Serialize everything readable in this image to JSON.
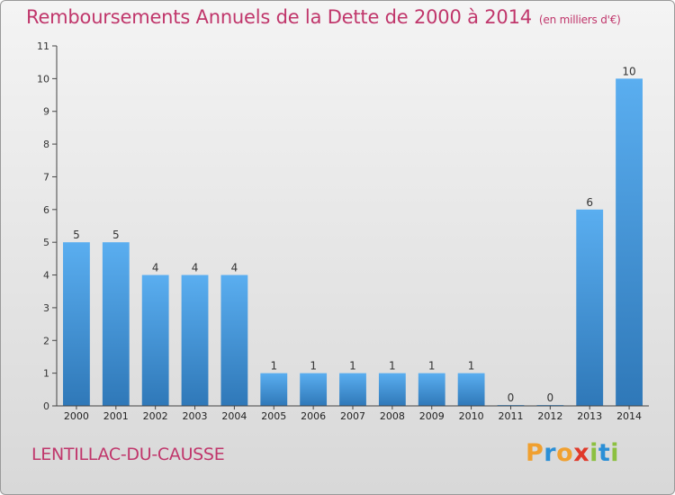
{
  "title": "Remboursements Annuels de la Dette de 2000 à 2014",
  "subtitle": "(en milliers d'€)",
  "commune": "LENTILLAC-DU-CAUSSE",
  "brand": {
    "letters": [
      "P",
      "r",
      "o",
      "x",
      "i",
      "t",
      "i"
    ],
    "colors": [
      "#f0a030",
      "#2b8fd6",
      "#f0a030",
      "#e03a2a",
      "#8cc040",
      "#2b8fd6",
      "#8cc040"
    ]
  },
  "chart_data": {
    "type": "bar",
    "title": "Remboursements Annuels de la Dette de 2000 à 2014",
    "subtitle": "(en milliers d'€)",
    "xlabel": "",
    "ylabel": "",
    "categories": [
      "2000",
      "2001",
      "2002",
      "2003",
      "2004",
      "2005",
      "2006",
      "2007",
      "2008",
      "2009",
      "2010",
      "2011",
      "2012",
      "2013",
      "2014"
    ],
    "values": [
      5,
      5,
      4,
      4,
      4,
      1,
      1,
      1,
      1,
      1,
      1,
      0,
      0,
      6,
      10
    ],
    "ylim": [
      0,
      11
    ],
    "yticks": [
      0,
      1,
      2,
      3,
      4,
      5,
      6,
      7,
      8,
      9,
      10,
      11
    ],
    "grid": false,
    "bar_color": "#4a9fe0"
  }
}
